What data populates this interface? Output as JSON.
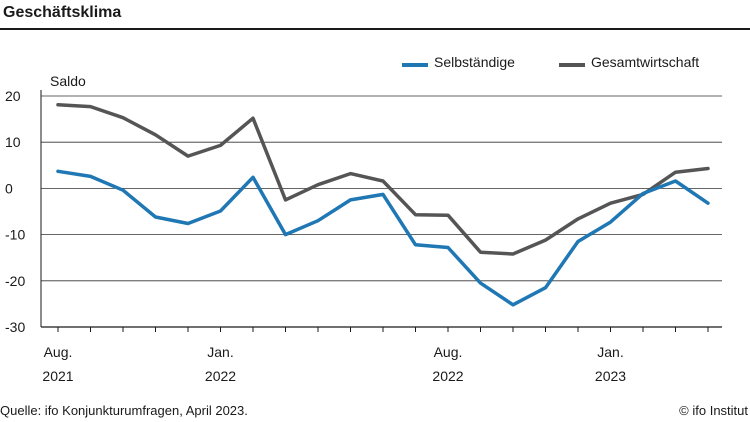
{
  "title": "Geschäftsklima",
  "source": "Quelle: ifo Konjunkturumfragen, April 2023.",
  "copyright": "© ifo Institut",
  "chart_data": {
    "type": "line",
    "ylabel": "Saldo",
    "ylim": [
      -30,
      20
    ],
    "yticks": [
      20,
      10,
      0,
      -10,
      -20,
      -30
    ],
    "grid": true,
    "legend_position": "top-right",
    "x": [
      "2021-08",
      "2021-09",
      "2021-10",
      "2021-11",
      "2021-12",
      "2022-01",
      "2022-02",
      "2022-03",
      "2022-04",
      "2022-05",
      "2022-06",
      "2022-07",
      "2022-08",
      "2022-09",
      "2022-10",
      "2022-11",
      "2022-12",
      "2023-01",
      "2023-02",
      "2023-03",
      "2023-04"
    ],
    "xtick_labels": [
      {
        "month": "Aug.",
        "year": "2021",
        "index": 0
      },
      {
        "month": "Jan.",
        "year": "2022",
        "index": 5
      },
      {
        "month": "Aug.",
        "year": "2022",
        "index": 12
      },
      {
        "month": "Jan.",
        "year": "2023",
        "index": 17
      }
    ],
    "series": [
      {
        "name": "Selbständige",
        "color": "#1f77b4",
        "values": [
          3.7,
          2.6,
          -0.4,
          -6.2,
          -7.6,
          -4.9,
          2.4,
          -10.0,
          -7.0,
          -2.5,
          -1.3,
          -12.2,
          -12.8,
          -20.5,
          -25.2,
          -21.5,
          -11.5,
          -7.3,
          -1.1,
          1.6,
          -3.2
        ]
      },
      {
        "name": "Gesamtwirtschaft",
        "color": "#555555",
        "values": [
          18.1,
          17.7,
          15.3,
          11.6,
          7.0,
          9.3,
          15.2,
          -2.5,
          0.8,
          3.2,
          1.6,
          -5.7,
          -5.8,
          -13.8,
          -14.2,
          -11.2,
          -6.6,
          -3.2,
          -1.3,
          3.5,
          4.3
        ]
      }
    ]
  }
}
